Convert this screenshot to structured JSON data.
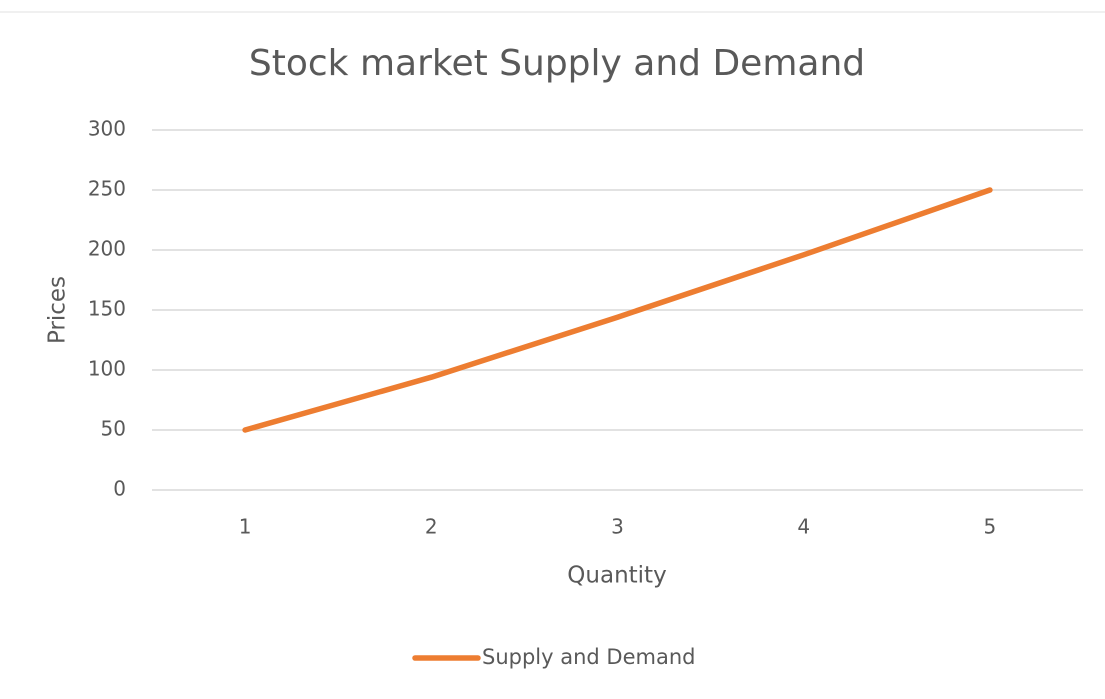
{
  "chart_data": {
    "type": "line",
    "title": "Stock market Supply and Demand",
    "x_label": "Quantity",
    "y_label": "Prices",
    "categories": [
      "1",
      "2",
      "3",
      "4",
      "5"
    ],
    "series": [
      {
        "name": "Supply and Demand",
        "color": "#ed7d31",
        "values": [
          50,
          94,
          144,
          196,
          250
        ]
      }
    ],
    "ylim": [
      0,
      300
    ],
    "yticks": [
      0,
      50,
      100,
      150,
      200,
      250,
      300
    ],
    "grid": true,
    "legend": "bottom"
  }
}
